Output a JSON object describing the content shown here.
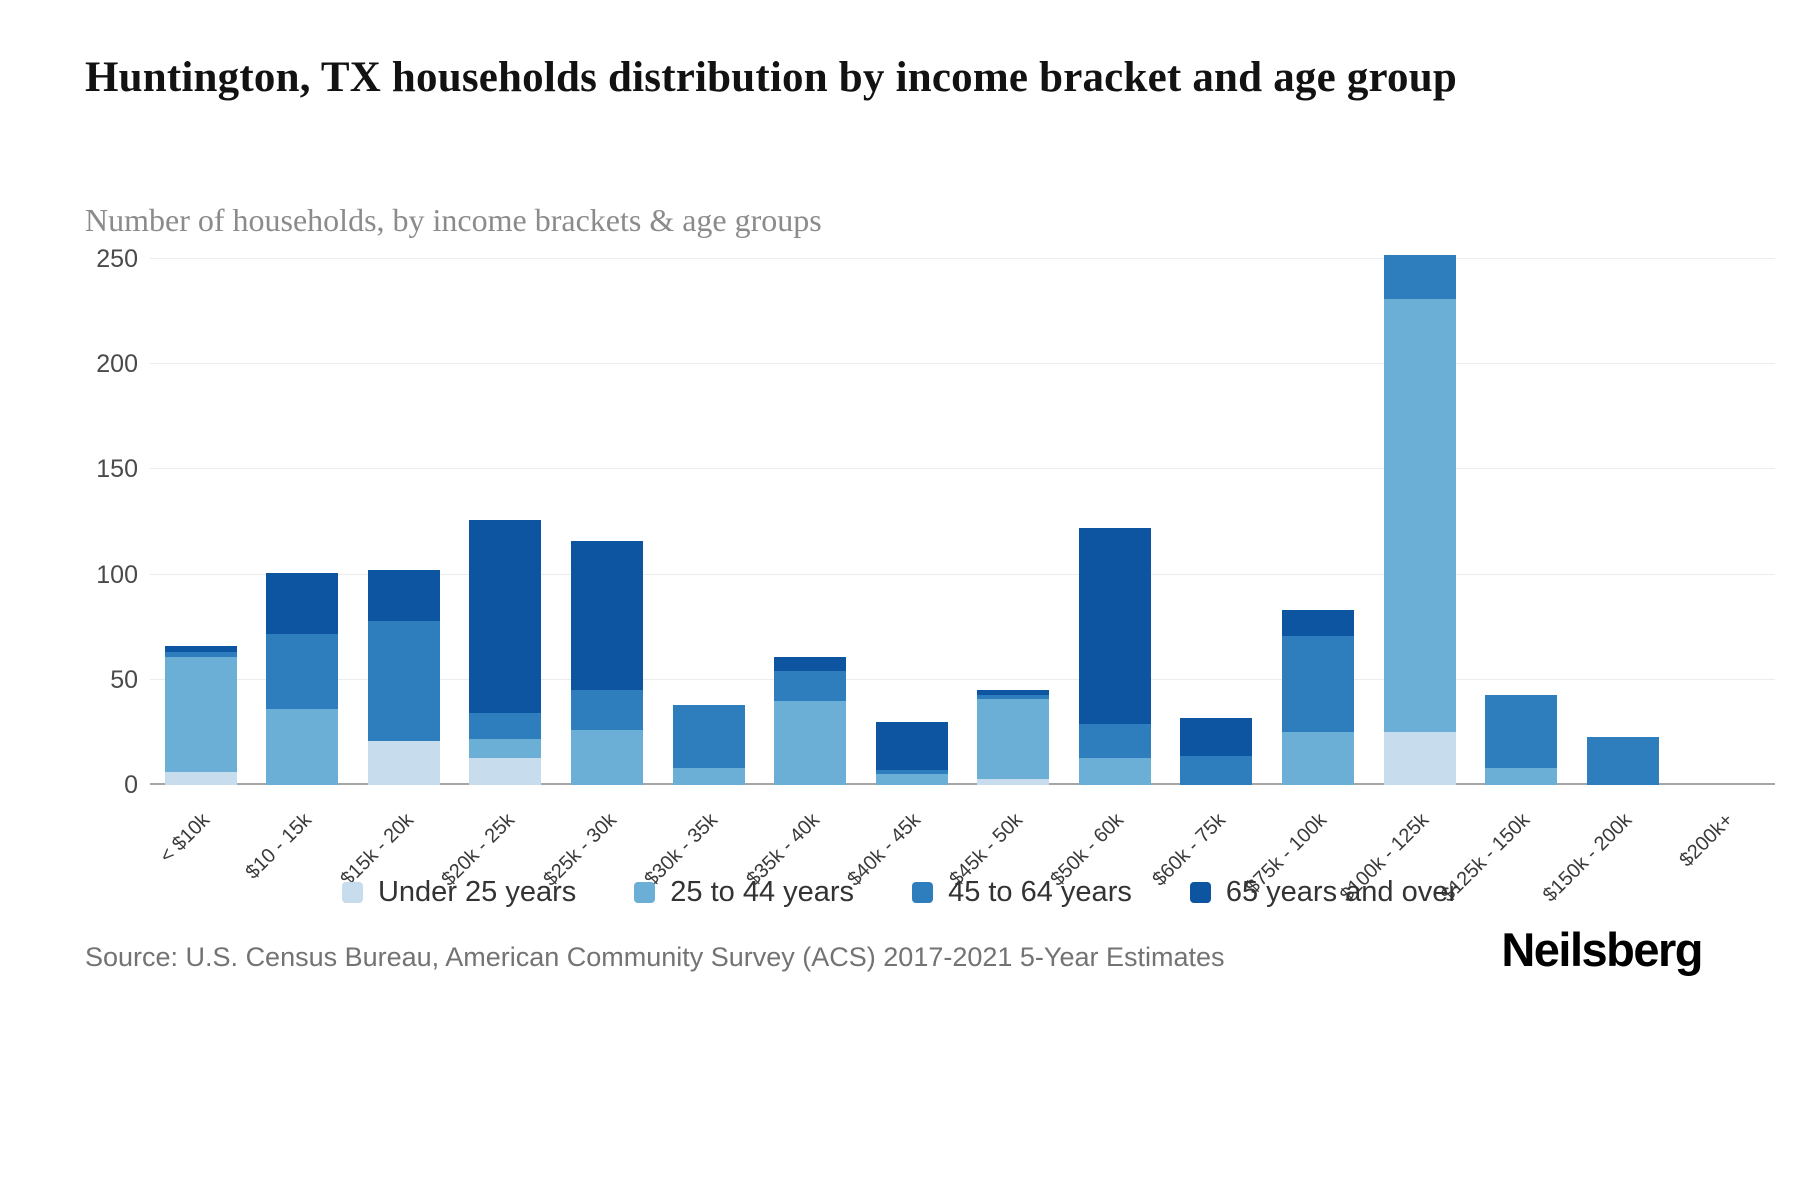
{
  "header": {
    "title": "Huntington, TX households distribution by income bracket and age group",
    "subtitle": "Number of households, by income brackets & age groups"
  },
  "chart_data": {
    "type": "bar",
    "stacked": true,
    "title": "Huntington, TX households distribution by income bracket and age group",
    "subtitle": "Number of households, by income brackets & age groups",
    "xlabel": "",
    "ylabel": "",
    "ylim": [
      0,
      250
    ],
    "yticks": [
      0,
      50,
      100,
      150,
      200,
      250
    ],
    "grid": "horizontal",
    "legend_position": "bottom",
    "categories": [
      "< $10k",
      "$10 - 15k",
      "$15k - 20k",
      "$20k - 25k",
      "$25k - 30k",
      "$30k - 35k",
      "$35k - 40k",
      "$40k - 45k",
      "$45k - 50k",
      "$50k - 60k",
      "$60k - 75k",
      "$75k - 100k",
      "$100k - 125k",
      "$125k - 150k",
      "$150k - 200k",
      "$200k+"
    ],
    "series": [
      {
        "name": "Under 25 years",
        "color": "#c7dcec",
        "values": [
          6,
          0,
          21,
          13,
          0,
          0,
          0,
          0,
          3,
          0,
          0,
          0,
          25,
          0,
          0,
          0
        ]
      },
      {
        "name": "25 to 44 years",
        "color": "#6baed6",
        "values": [
          55,
          36,
          0,
          9,
          26,
          8,
          40,
          5,
          38,
          13,
          0,
          25,
          206,
          8,
          0,
          0
        ]
      },
      {
        "name": "45 to 64 years",
        "color": "#2e7ebd",
        "values": [
          2,
          36,
          57,
          12,
          19,
          30,
          14,
          2,
          2,
          16,
          14,
          46,
          21,
          35,
          23,
          0
        ]
      },
      {
        "name": "65 years and over",
        "color": "#0d55a1",
        "values": [
          3,
          29,
          24,
          92,
          71,
          0,
          7,
          23,
          2,
          93,
          18,
          12,
          0,
          0,
          0,
          0
        ]
      }
    ]
  },
  "footer": {
    "source": "Source: U.S. Census Bureau, American Community Survey (ACS) 2017-2021 5-Year Estimates",
    "brand": "Neilsberg"
  }
}
